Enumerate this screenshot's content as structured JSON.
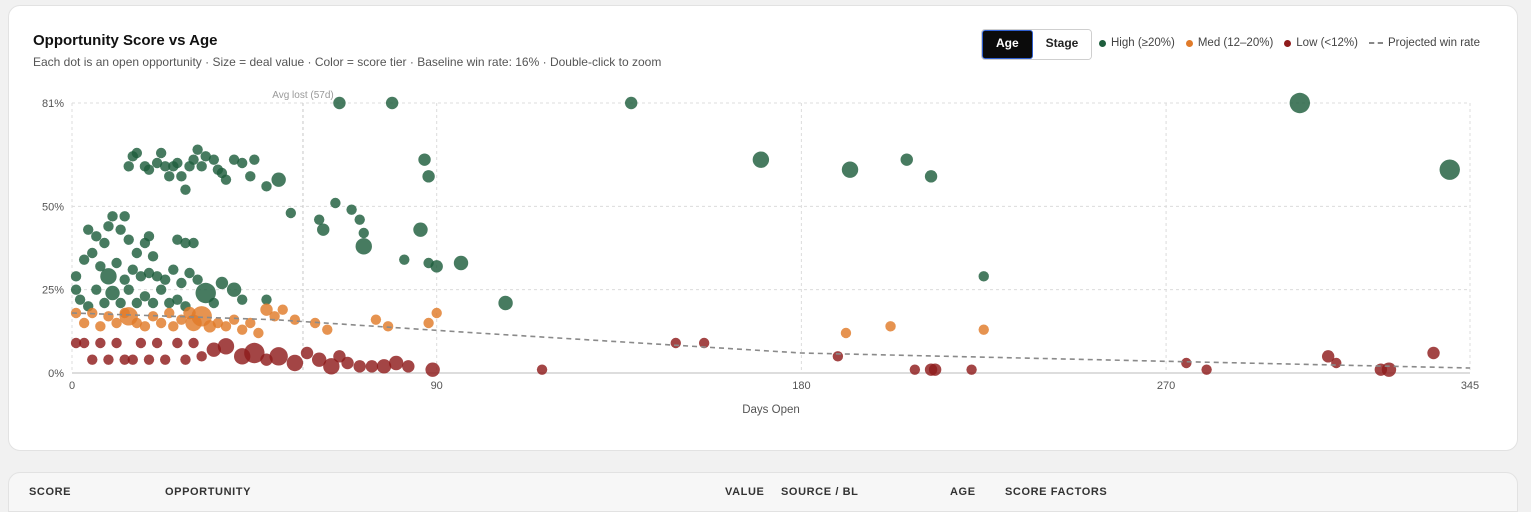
{
  "card": {
    "title": "Opportunity Score vs Age",
    "subtitle": "Each dot is an open opportunity · Size = deal value · Color = score tier · Baseline win rate: 16% · Double-click to zoom"
  },
  "toggle": [
    {
      "label": "Age",
      "active": true
    },
    {
      "label": "Stage",
      "active": false
    }
  ],
  "legend": [
    {
      "label": "High (≥20%)",
      "color": "#1e5e3d",
      "kind": "dot"
    },
    {
      "label": "Med (12–20%)",
      "color": "#e07b2a",
      "kind": "dot"
    },
    {
      "label": "Low (<12%)",
      "color": "#8f1c1c",
      "kind": "dot"
    },
    {
      "label": "Projected win rate",
      "color": "#888888",
      "kind": "dash"
    }
  ],
  "chart_data": {
    "type": "scatter",
    "title": "Opportunity Score vs Age",
    "xlabel": "Days Open",
    "ylabel": "",
    "xlim": [
      0,
      345
    ],
    "y_ticks": [
      {
        "value": 0,
        "label": "0%"
      },
      {
        "value": 0.25,
        "label": "25%"
      },
      {
        "value": 0.5,
        "label": "50%"
      },
      {
        "value": 0.81,
        "label": "81%"
      }
    ],
    "x_ticks": [
      {
        "value": 0,
        "label": "0"
      },
      {
        "value": 90,
        "label": "90"
      },
      {
        "value": 180,
        "label": "180"
      },
      {
        "value": 270,
        "label": "270"
      },
      {
        "value": 345,
        "label": "345"
      }
    ],
    "grid": true,
    "reference_line": {
      "x": 57,
      "label": "Avg lost (57d)"
    },
    "projected_win_rate": [
      [
        0,
        0.18
      ],
      [
        50,
        0.16
      ],
      [
        100,
        0.12
      ],
      [
        180,
        0.06
      ],
      [
        270,
        0.035
      ],
      [
        345,
        0.015
      ]
    ],
    "series": [
      {
        "name": "High (≥20%)",
        "color": "#1e5e3d",
        "points": [
          [
            66,
            0.81,
            2
          ],
          [
            79,
            0.81,
            2
          ],
          [
            138,
            0.81,
            2
          ],
          [
            303,
            0.81,
            4
          ],
          [
            170,
            0.64,
            3
          ],
          [
            192,
            0.61,
            3
          ],
          [
            206,
            0.64,
            2
          ],
          [
            212,
            0.59,
            2
          ],
          [
            340,
            0.61,
            4
          ],
          [
            87,
            0.64,
            2
          ],
          [
            88,
            0.59,
            2
          ],
          [
            51,
            0.58,
            2.5
          ],
          [
            54,
            0.48,
            1.5
          ],
          [
            65,
            0.51,
            1.5
          ],
          [
            69,
            0.49,
            1.5
          ],
          [
            71,
            0.46,
            1.5
          ],
          [
            61,
            0.46,
            1.5
          ],
          [
            62,
            0.43,
            2
          ],
          [
            72,
            0.42,
            1.5
          ],
          [
            86,
            0.43,
            2.5
          ],
          [
            72,
            0.38,
            3
          ],
          [
            82,
            0.34,
            1.5
          ],
          [
            88,
            0.33,
            1.5
          ],
          [
            90,
            0.32,
            2
          ],
          [
            96,
            0.33,
            2.5
          ],
          [
            107,
            0.21,
            2.5
          ],
          [
            225,
            0.29,
            1.5
          ],
          [
            40,
            0.25,
            2.5
          ],
          [
            37,
            0.27,
            2
          ],
          [
            33,
            0.24,
            4
          ],
          [
            14,
            0.62,
            1.5
          ],
          [
            15,
            0.65,
            1.5
          ],
          [
            16,
            0.66,
            1.5
          ],
          [
            18,
            0.62,
            1.5
          ],
          [
            19,
            0.61,
            1.5
          ],
          [
            21,
            0.63,
            1.5
          ],
          [
            22,
            0.66,
            1.5
          ],
          [
            23,
            0.62,
            1.5
          ],
          [
            24,
            0.59,
            1.5
          ],
          [
            25,
            0.62,
            1.5
          ],
          [
            26,
            0.63,
            1.5
          ],
          [
            27,
            0.59,
            1.5
          ],
          [
            28,
            0.55,
            1.5
          ],
          [
            29,
            0.62,
            1.5
          ],
          [
            30,
            0.64,
            1.5
          ],
          [
            31,
            0.67,
            1.5
          ],
          [
            32,
            0.62,
            1.5
          ],
          [
            33,
            0.65,
            1.5
          ],
          [
            35,
            0.64,
            1.5
          ],
          [
            36,
            0.61,
            1.5
          ],
          [
            37,
            0.6,
            1.5
          ],
          [
            38,
            0.58,
            1.5
          ],
          [
            40,
            0.64,
            1.5
          ],
          [
            42,
            0.63,
            1.5
          ],
          [
            44,
            0.59,
            1.5
          ],
          [
            45,
            0.64,
            1.5
          ],
          [
            48,
            0.56,
            1.5
          ],
          [
            4,
            0.43,
            1.5
          ],
          [
            6,
            0.41,
            1.5
          ],
          [
            8,
            0.39,
            1.5
          ],
          [
            9,
            0.44,
            1.5
          ],
          [
            10,
            0.47,
            1.5
          ],
          [
            12,
            0.43,
            1.5
          ],
          [
            13,
            0.47,
            1.5
          ],
          [
            14,
            0.4,
            1.5
          ],
          [
            16,
            0.36,
            1.5
          ],
          [
            18,
            0.39,
            1.5
          ],
          [
            19,
            0.41,
            1.5
          ],
          [
            20,
            0.35,
            1.5
          ],
          [
            3,
            0.34,
            1.5
          ],
          [
            5,
            0.36,
            1.5
          ],
          [
            7,
            0.32,
            1.5
          ],
          [
            9,
            0.29,
            3
          ],
          [
            11,
            0.33,
            1.5
          ],
          [
            13,
            0.28,
            1.5
          ],
          [
            15,
            0.31,
            1.5
          ],
          [
            17,
            0.29,
            1.5
          ],
          [
            19,
            0.3,
            1.5
          ],
          [
            21,
            0.29,
            1.5
          ],
          [
            23,
            0.28,
            1.5
          ],
          [
            25,
            0.31,
            1.5
          ],
          [
            27,
            0.27,
            1.5
          ],
          [
            29,
            0.3,
            1.5
          ],
          [
            31,
            0.28,
            1.5
          ],
          [
            26,
            0.4,
            1.5
          ],
          [
            28,
            0.39,
            1.5
          ],
          [
            30,
            0.39,
            1.5
          ],
          [
            1,
            0.29,
            1.5
          ],
          [
            1,
            0.25,
            1.5
          ],
          [
            2,
            0.22,
            1.5
          ],
          [
            4,
            0.2,
            1.5
          ],
          [
            6,
            0.25,
            1.5
          ],
          [
            8,
            0.21,
            1.5
          ],
          [
            10,
            0.24,
            2.5
          ],
          [
            12,
            0.21,
            1.5
          ],
          [
            14,
            0.25,
            1.5
          ],
          [
            16,
            0.21,
            1.5
          ],
          [
            18,
            0.23,
            1.5
          ],
          [
            20,
            0.21,
            1.5
          ],
          [
            22,
            0.25,
            1.5
          ],
          [
            24,
            0.21,
            1.5
          ],
          [
            26,
            0.22,
            1.5
          ],
          [
            28,
            0.2,
            1.5
          ],
          [
            35,
            0.21,
            1.5
          ],
          [
            42,
            0.22,
            1.5
          ],
          [
            48,
            0.22,
            1.5
          ]
        ]
      },
      {
        "name": "Med (12–20%)",
        "color": "#e07b2a",
        "points": [
          [
            1,
            0.18,
            1.5
          ],
          [
            3,
            0.15,
            1.5
          ],
          [
            5,
            0.18,
            1.5
          ],
          [
            7,
            0.14,
            1.5
          ],
          [
            9,
            0.17,
            1.5
          ],
          [
            11,
            0.15,
            1.5
          ],
          [
            13,
            0.18,
            1.5
          ],
          [
            14,
            0.17,
            3.5
          ],
          [
            16,
            0.15,
            1.5
          ],
          [
            18,
            0.14,
            1.5
          ],
          [
            20,
            0.17,
            1.5
          ],
          [
            22,
            0.15,
            1.5
          ],
          [
            24,
            0.18,
            1.5
          ],
          [
            25,
            0.14,
            1.5
          ],
          [
            27,
            0.16,
            1.5
          ],
          [
            29,
            0.18,
            2
          ],
          [
            30,
            0.15,
            3
          ],
          [
            32,
            0.17,
            4
          ],
          [
            34,
            0.14,
            2
          ],
          [
            36,
            0.15,
            1.5
          ],
          [
            38,
            0.14,
            1.5
          ],
          [
            40,
            0.16,
            1.5
          ],
          [
            42,
            0.13,
            1.5
          ],
          [
            44,
            0.15,
            1.5
          ],
          [
            46,
            0.12,
            1.5
          ],
          [
            48,
            0.19,
            2
          ],
          [
            50,
            0.17,
            1.5
          ],
          [
            52,
            0.19,
            1.5
          ],
          [
            55,
            0.16,
            1.5
          ],
          [
            60,
            0.15,
            1.5
          ],
          [
            63,
            0.13,
            1.5
          ],
          [
            75,
            0.16,
            1.5
          ],
          [
            78,
            0.14,
            1.5
          ],
          [
            88,
            0.15,
            1.5
          ],
          [
            90,
            0.18,
            1.5
          ],
          [
            191,
            0.12,
            1.5
          ],
          [
            202,
            0.14,
            1.5
          ],
          [
            225,
            0.13,
            1.5
          ]
        ]
      },
      {
        "name": "Low (<12%)",
        "color": "#8f1c1c",
        "points": [
          [
            1,
            0.09,
            1.5
          ],
          [
            3,
            0.09,
            1.5
          ],
          [
            5,
            0.04,
            1.5
          ],
          [
            7,
            0.09,
            1.5
          ],
          [
            9,
            0.04,
            1.5
          ],
          [
            11,
            0.09,
            1.5
          ],
          [
            13,
            0.04,
            1.5
          ],
          [
            15,
            0.04,
            1.5
          ],
          [
            17,
            0.09,
            1.5
          ],
          [
            19,
            0.04,
            1.5
          ],
          [
            21,
            0.09,
            1.5
          ],
          [
            23,
            0.04,
            1.5
          ],
          [
            26,
            0.09,
            1.5
          ],
          [
            28,
            0.04,
            1.5
          ],
          [
            30,
            0.09,
            1.5
          ],
          [
            32,
            0.05,
            1.5
          ],
          [
            35,
            0.07,
            2.5
          ],
          [
            38,
            0.08,
            3
          ],
          [
            42,
            0.05,
            3
          ],
          [
            45,
            0.06,
            4
          ],
          [
            48,
            0.04,
            2
          ],
          [
            51,
            0.05,
            3.5
          ],
          [
            55,
            0.03,
            3
          ],
          [
            58,
            0.06,
            2
          ],
          [
            61,
            0.04,
            2.5
          ],
          [
            64,
            0.02,
            3
          ],
          [
            66,
            0.05,
            2
          ],
          [
            68,
            0.03,
            2
          ],
          [
            71,
            0.02,
            2
          ],
          [
            74,
            0.02,
            2
          ],
          [
            77,
            0.02,
            2.5
          ],
          [
            80,
            0.03,
            2.5
          ],
          [
            83,
            0.02,
            2
          ],
          [
            89,
            0.01,
            2.5
          ],
          [
            116,
            0.01,
            1.5
          ],
          [
            149,
            0.09,
            1.5
          ],
          [
            156,
            0.09,
            1.5
          ],
          [
            189,
            0.05,
            1.5
          ],
          [
            208,
            0.01,
            1.5
          ],
          [
            212,
            0.01,
            2
          ],
          [
            213,
            0.01,
            2
          ],
          [
            222,
            0.01,
            1.5
          ],
          [
            275,
            0.03,
            1.5
          ],
          [
            280,
            0.01,
            1.5
          ],
          [
            310,
            0.05,
            2
          ],
          [
            312,
            0.03,
            1.5
          ],
          [
            323,
            0.01,
            2
          ],
          [
            325,
            0.01,
            2.5
          ],
          [
            336,
            0.06,
            2
          ]
        ]
      }
    ]
  },
  "table_headers": [
    "SCORE",
    "OPPORTUNITY",
    "VALUE",
    "SOURCE / BL",
    "AGE",
    "SCORE FACTORS"
  ]
}
